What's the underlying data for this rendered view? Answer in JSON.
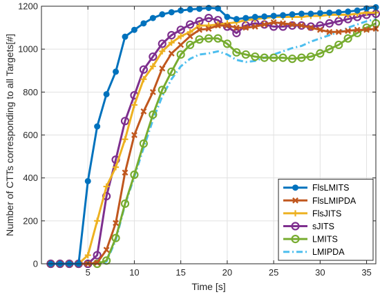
{
  "chart_data": {
    "type": "line",
    "xlabel": "Time [s]",
    "ylabel": "Number of CTTs corresponding to all Targets[#]",
    "xlim": [
      0,
      36
    ],
    "ylim": [
      0,
      1200
    ],
    "xticks": [
      5,
      10,
      15,
      20,
      25,
      30,
      35
    ],
    "yticks": [
      0,
      200,
      400,
      600,
      800,
      1000,
      1200
    ],
    "grid": true,
    "legend_position": "bottom-right",
    "x": [
      1,
      2,
      3,
      4,
      5,
      6,
      7,
      8,
      9,
      10,
      11,
      12,
      13,
      14,
      15,
      16,
      17,
      18,
      19,
      20,
      21,
      22,
      23,
      24,
      25,
      26,
      27,
      28,
      29,
      30,
      31,
      32,
      33,
      34,
      35,
      36
    ],
    "series": [
      {
        "name": "FlsLMITS",
        "color": "#0072BD",
        "marker": "dot",
        "dash": "solid",
        "values": [
          0,
          0,
          0,
          0,
          385,
          640,
          790,
          895,
          1058,
          1090,
          1120,
          1145,
          1162,
          1172,
          1180,
          1185,
          1188,
          1192,
          1190,
          1150,
          1140,
          1145,
          1150,
          1152,
          1155,
          1158,
          1162,
          1165,
          1165,
          1168,
          1170,
          1172,
          1175,
          1180,
          1190,
          1195
        ]
      },
      {
        "name": "FlsLMIPDA",
        "color": "#C0571E",
        "marker": "x",
        "dash": "solid",
        "values": [
          0,
          0,
          0,
          0,
          0,
          5,
          65,
          190,
          425,
          600,
          710,
          800,
          910,
          980,
          1020,
          1060,
          1090,
          1095,
          1110,
          1110,
          1100,
          1100,
          1105,
          1115,
          1125,
          1120,
          1115,
          1110,
          1100,
          1090,
          1080,
          1080,
          1085,
          1090,
          1090,
          1095
        ]
      },
      {
        "name": "FlsJITS",
        "color": "#EDB120",
        "marker": "plus",
        "dash": "solid",
        "values": [
          0,
          0,
          0,
          0,
          40,
          200,
          360,
          450,
          580,
          740,
          860,
          920,
          990,
          1030,
          1060,
          1080,
          1110,
          1110,
          1115,
          1120,
          1125,
          1135,
          1140,
          1145,
          1150,
          1150,
          1150,
          1150,
          1155,
          1155,
          1160,
          1160,
          1160,
          1165,
          1170,
          1170
        ]
      },
      {
        "name": "sJITS",
        "color": "#7E2F8E",
        "marker": "circle",
        "dash": "solid",
        "values": [
          0,
          0,
          0,
          0,
          0,
          40,
          315,
          485,
          665,
          785,
          905,
          965,
          1025,
          1065,
          1090,
          1115,
          1130,
          1145,
          1135,
          1105,
          1075,
          1110,
          1120,
          1115,
          1105,
          1105,
          1110,
          1110,
          1105,
          1110,
          1120,
          1130,
          1140,
          1150,
          1160,
          1165
        ]
      },
      {
        "name": "LMITS",
        "color": "#77AC30",
        "marker": "circle",
        "dash": "solid",
        "values": [
          0,
          0,
          0,
          0,
          0,
          0,
          15,
          120,
          280,
          415,
          560,
          695,
          810,
          895,
          975,
          1020,
          1045,
          1050,
          1050,
          1025,
          985,
          975,
          965,
          960,
          960,
          960,
          955,
          960,
          965,
          980,
          1000,
          1020,
          1050,
          1075,
          1100,
          1120
        ]
      },
      {
        "name": "LMIPDA",
        "color": "#4DBEEE",
        "marker": "none",
        "dash": "dashdot",
        "values": [
          0,
          0,
          0,
          0,
          0,
          0,
          10,
          110,
          275,
          405,
          540,
          670,
          780,
          860,
          920,
          955,
          975,
          980,
          990,
          975,
          950,
          940,
          945,
          960,
          975,
          990,
          1005,
          1015,
          1035,
          1050,
          1065,
          1080,
          1100,
          1115,
          1130,
          1140
        ]
      }
    ]
  }
}
